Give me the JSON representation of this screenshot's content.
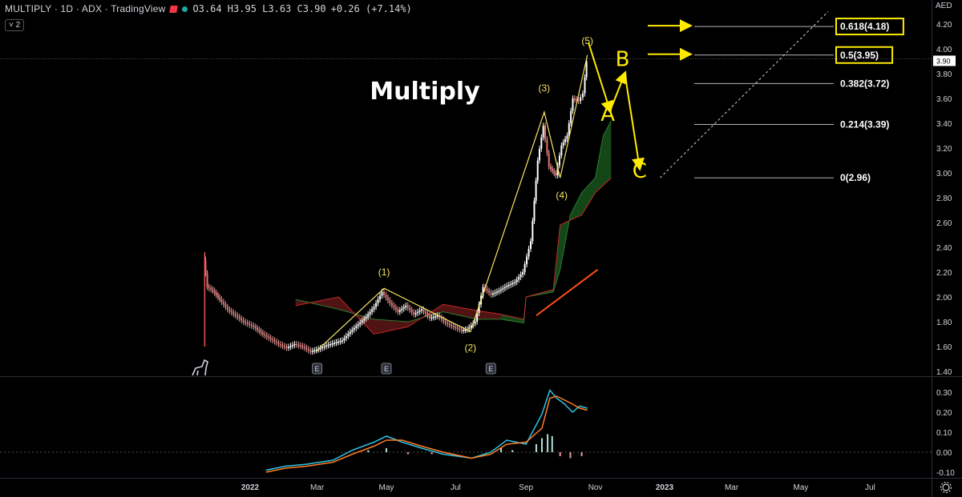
{
  "header": {
    "symbol": "MULTIPLY · 1D · ADX · TradingView",
    "ohlc": "O3.64 H3.95 L3.63 C3.90",
    "change": "+0.26 (+7.14%)",
    "collapse_label": "˅ 2",
    "currency": "AED"
  },
  "chart_data": {
    "type": "line",
    "title": "Multiply",
    "price_axis": {
      "ticks": [
        1.4,
        1.6,
        1.8,
        2.0,
        2.2,
        2.4,
        2.6,
        2.8,
        3.0,
        3.2,
        3.4,
        3.6,
        3.8,
        4.0,
        4.2
      ],
      "tick_labels": [
        "1.40",
        "1.60",
        "1.80",
        "2.00",
        "2.20",
        "2.40",
        "2.60",
        "2.80",
        "3.00",
        "3.20",
        "3.40",
        "3.60",
        "3.80",
        "4.00",
        "4.20"
      ],
      "ylim": [
        1.34,
        4.3
      ],
      "last_price_label": "3.90",
      "last_price": 3.9
    },
    "osc_axis": {
      "ticks": [
        -0.1,
        0.0,
        0.1,
        0.2,
        0.3
      ],
      "tick_labels": [
        "-0.10",
        "0.00",
        "0.10",
        "0.20",
        "0.30"
      ],
      "ylim": [
        -0.13,
        0.34
      ]
    },
    "time_axis": {
      "tick_labels": [
        "2022",
        "Mar",
        "May",
        "Jul",
        "Sep",
        "Nov",
        "2023",
        "Mar",
        "May",
        "Jul"
      ],
      "tick_dates": [
        "2022-01-01",
        "2022-03-01",
        "2022-05-01",
        "2022-07-01",
        "2022-09-01",
        "2022-11-01",
        "2023-01-01",
        "2023-03-01",
        "2023-05-01",
        "2023-07-01"
      ]
    },
    "price_path": [
      [
        "2021-11-22",
        2.3
      ],
      [
        "2021-11-25",
        2.08
      ],
      [
        "2021-11-30",
        2.05
      ],
      [
        "2021-12-06",
        1.98
      ],
      [
        "2021-12-13",
        1.9
      ],
      [
        "2021-12-20",
        1.85
      ],
      [
        "2021-12-27",
        1.8
      ],
      [
        "2022-01-05",
        1.76
      ],
      [
        "2022-01-13",
        1.7
      ],
      [
        "2022-01-20",
        1.66
      ],
      [
        "2022-01-27",
        1.62
      ],
      [
        "2022-02-03",
        1.59
      ],
      [
        "2022-02-10",
        1.62
      ],
      [
        "2022-02-17",
        1.6
      ],
      [
        "2022-02-24",
        1.56
      ],
      [
        "2022-03-03",
        1.58
      ],
      [
        "2022-03-10",
        1.61
      ],
      [
        "2022-03-17",
        1.63
      ],
      [
        "2022-03-24",
        1.65
      ],
      [
        "2022-03-31",
        1.72
      ],
      [
        "2022-04-07",
        1.78
      ],
      [
        "2022-04-14",
        1.84
      ],
      [
        "2022-04-21",
        1.92
      ],
      [
        "2022-04-28",
        2.04
      ],
      [
        "2022-05-05",
        1.95
      ],
      [
        "2022-05-12",
        1.88
      ],
      [
        "2022-05-19",
        1.93
      ],
      [
        "2022-05-26",
        1.86
      ],
      [
        "2022-06-02",
        1.9
      ],
      [
        "2022-06-09",
        1.83
      ],
      [
        "2022-06-16",
        1.85
      ],
      [
        "2022-06-23",
        1.79
      ],
      [
        "2022-06-30",
        1.76
      ],
      [
        "2022-07-07",
        1.73
      ],
      [
        "2022-07-12",
        1.74
      ],
      [
        "2022-07-19",
        1.8
      ],
      [
        "2022-07-26",
        2.08
      ],
      [
        "2022-08-02",
        2.02
      ],
      [
        "2022-08-09",
        2.05
      ],
      [
        "2022-08-16",
        2.09
      ],
      [
        "2022-08-23",
        2.12
      ],
      [
        "2022-08-30",
        2.2
      ],
      [
        "2022-09-06",
        2.45
      ],
      [
        "2022-09-12",
        3.1
      ],
      [
        "2022-09-17",
        3.38
      ],
      [
        "2022-09-22",
        3.05
      ],
      [
        "2022-09-28",
        2.98
      ],
      [
        "2022-10-03",
        3.22
      ],
      [
        "2022-10-08",
        3.3
      ],
      [
        "2022-10-13",
        3.6
      ],
      [
        "2022-10-18",
        3.58
      ],
      [
        "2022-10-22",
        3.64
      ],
      [
        "2022-10-25",
        3.9
      ]
    ],
    "ichimoku_cloud": {
      "span_a": [
        [
          "2022-02-10",
          1.98
        ],
        [
          "2022-03-20",
          1.9
        ],
        [
          "2022-04-20",
          1.82
        ],
        [
          "2022-05-20",
          1.8
        ],
        [
          "2022-06-20",
          1.88
        ],
        [
          "2022-07-20",
          1.82
        ],
        [
          "2022-08-10",
          1.82
        ],
        [
          "2022-08-30",
          1.79
        ],
        [
          "2022-09-01",
          2.0
        ],
        [
          "2022-09-25",
          2.04
        ],
        [
          "2022-10-01",
          2.22
        ],
        [
          "2022-10-10",
          2.66
        ],
        [
          "2022-10-20",
          2.84
        ],
        [
          "2022-11-01",
          2.96
        ],
        [
          "2022-11-08",
          3.3
        ],
        [
          "2022-11-15",
          3.42
        ]
      ],
      "span_b": [
        [
          "2022-02-10",
          1.93
        ],
        [
          "2022-03-20",
          2.0
        ],
        [
          "2022-04-20",
          1.7
        ],
        [
          "2022-05-20",
          1.76
        ],
        [
          "2022-06-20",
          1.94
        ],
        [
          "2022-07-20",
          1.89
        ],
        [
          "2022-08-10",
          1.86
        ],
        [
          "2022-08-30",
          1.82
        ],
        [
          "2022-09-01",
          2.0
        ],
        [
          "2022-09-25",
          2.06
        ],
        [
          "2022-10-01",
          2.58
        ],
        [
          "2022-10-10",
          2.62
        ],
        [
          "2022-10-20",
          2.66
        ],
        [
          "2022-11-01",
          2.84
        ],
        [
          "2022-11-08",
          2.9
        ],
        [
          "2022-11-15",
          2.96
        ]
      ]
    },
    "wave_path": [
      [
        "2022-02-28",
        1.56
      ],
      [
        "2022-04-29",
        2.07
      ],
      [
        "2022-07-14",
        1.72
      ],
      [
        "2022-09-17",
        3.49
      ],
      [
        "2022-10-01",
        2.96
      ],
      [
        "2022-10-25",
        3.95
      ]
    ],
    "wave_labels": [
      {
        "text": "(1)",
        "date": "2022-04-29",
        "price": 2.07
      },
      {
        "text": "(2)",
        "date": "2022-07-14",
        "price": 1.72
      },
      {
        "text": "(3)",
        "date": "2022-09-17",
        "price": 3.49
      },
      {
        "text": "(4)",
        "date": "2022-10-01",
        "price": 2.96
      },
      {
        "text": "(5)",
        "date": "2022-10-25",
        "price": 3.95
      }
    ],
    "projection_path": [
      [
        "2022-10-26",
        4.05
      ],
      [
        "2022-11-14",
        3.5
      ],
      [
        "2022-11-27",
        3.8
      ],
      [
        "2022-12-10",
        3.04
      ]
    ],
    "projection_labels": [
      {
        "text": "A",
        "date": "2022-11-12",
        "price": 3.42
      },
      {
        "text": "B",
        "date": "2022-11-25",
        "price": 3.86
      },
      {
        "text": "C",
        "date": "2022-12-10",
        "price": 2.96
      }
    ],
    "fib_levels": [
      {
        "label": "0.618(4.18)",
        "price": 4.18,
        "highlight": true
      },
      {
        "label": "0.5(3.95)",
        "price": 3.95,
        "highlight": true
      },
      {
        "label": "0.382(3.72)",
        "price": 3.72,
        "highlight": false
      },
      {
        "label": "0.214(3.39)",
        "price": 3.39,
        "highlight": false
      },
      {
        "label": "0(2.96)",
        "price": 2.96,
        "highlight": false
      }
    ],
    "fib_diagonal": [
      [
        "2022-12-28",
        2.96
      ],
      [
        "2023-05-25",
        4.3
      ]
    ],
    "trend_segment": [
      [
        "2022-09-10",
        1.85
      ],
      [
        "2022-11-03",
        2.22
      ]
    ],
    "events": [
      {
        "label": "E",
        "date": "2022-03-01"
      },
      {
        "label": "E",
        "date": "2022-05-01"
      },
      {
        "label": "E",
        "date": "2022-08-01"
      }
    ],
    "macd": [
      [
        "2022-01-15",
        -0.09
      ],
      [
        "2022-02-01",
        -0.07
      ],
      [
        "2022-02-20",
        -0.06
      ],
      [
        "2022-03-15",
        -0.04
      ],
      [
        "2022-04-01",
        0.01
      ],
      [
        "2022-04-20",
        0.05
      ],
      [
        "2022-05-01",
        0.08
      ],
      [
        "2022-05-15",
        0.05
      ],
      [
        "2022-06-01",
        0.02
      ],
      [
        "2022-06-20",
        -0.01
      ],
      [
        "2022-07-15",
        -0.03
      ],
      [
        "2022-08-01",
        0.0
      ],
      [
        "2022-08-15",
        0.06
      ],
      [
        "2022-09-01",
        0.04
      ],
      [
        "2022-09-15",
        0.19
      ],
      [
        "2022-09-22",
        0.31
      ],
      [
        "2022-09-28",
        0.27
      ],
      [
        "2022-10-05",
        0.24
      ],
      [
        "2022-10-12",
        0.2
      ],
      [
        "2022-10-18",
        0.23
      ],
      [
        "2022-10-25",
        0.22
      ]
    ],
    "macd_signal": [
      [
        "2022-01-15",
        -0.1
      ],
      [
        "2022-02-01",
        -0.08
      ],
      [
        "2022-02-20",
        -0.07
      ],
      [
        "2022-03-15",
        -0.05
      ],
      [
        "2022-04-01",
        -0.01
      ],
      [
        "2022-04-20",
        0.03
      ],
      [
        "2022-05-01",
        0.06
      ],
      [
        "2022-05-15",
        0.06
      ],
      [
        "2022-06-01",
        0.03
      ],
      [
        "2022-06-20",
        0.0
      ],
      [
        "2022-07-15",
        -0.03
      ],
      [
        "2022-08-01",
        -0.01
      ],
      [
        "2022-08-15",
        0.04
      ],
      [
        "2022-09-01",
        0.05
      ],
      [
        "2022-09-15",
        0.12
      ],
      [
        "2022-09-22",
        0.27
      ],
      [
        "2022-09-28",
        0.28
      ],
      [
        "2022-10-05",
        0.26
      ],
      [
        "2022-10-12",
        0.24
      ],
      [
        "2022-10-18",
        0.22
      ],
      [
        "2022-10-25",
        0.21
      ]
    ],
    "macd_histogram": [
      [
        "2022-04-15",
        0.01
      ],
      [
        "2022-05-01",
        0.02
      ],
      [
        "2022-05-20",
        -0.01
      ],
      [
        "2022-06-10",
        -0.01
      ],
      [
        "2022-08-10",
        0.02
      ],
      [
        "2022-08-20",
        0.01
      ],
      [
        "2022-09-10",
        0.04
      ],
      [
        "2022-09-15",
        0.07
      ],
      [
        "2022-09-20",
        0.09
      ],
      [
        "2022-09-24",
        0.08
      ],
      [
        "2022-10-01",
        -0.02
      ],
      [
        "2022-10-10",
        -0.03
      ],
      [
        "2022-10-20",
        -0.02
      ]
    ],
    "colors": {
      "up": "#26a69a",
      "down": "#ef5350",
      "wave": "#f5e663",
      "projection": "#ffeb00",
      "cloud_bull": "#1b5e20",
      "cloud_bear": "#6b1a1a",
      "macd": "#2ec4e6",
      "signal": "#ff7f27",
      "fib": "#b2b5be",
      "trend": "#ff4d1a",
      "background": "#000000",
      "grid_text": "#d1d4dc"
    }
  }
}
